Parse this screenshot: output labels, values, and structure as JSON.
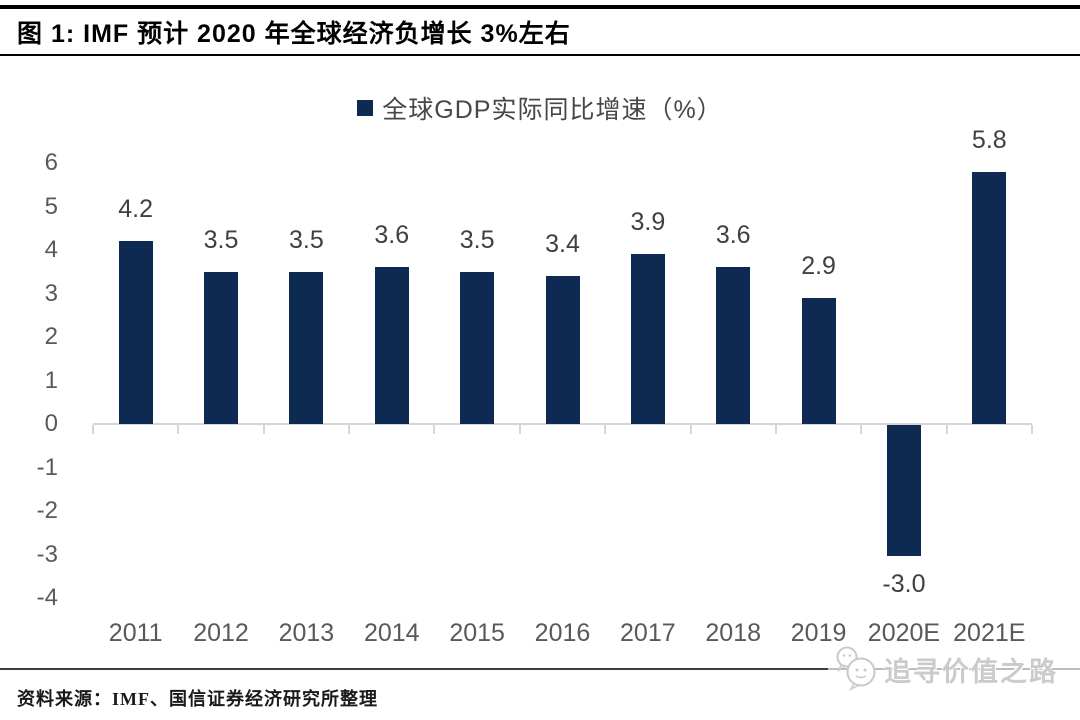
{
  "title": "图 1: IMF 预计 2020 年全球经济负增长 3%左右",
  "legend": {
    "label": "全球GDP实际同比增速（%）"
  },
  "source_note": "资料来源：IMF、国信证券经济研究所整理",
  "watermark": {
    "text": "追寻价值之路",
    "icon": "wechat-bubbles-icon"
  },
  "colors": {
    "bar": "#0e2a52",
    "axis_label": "#595959",
    "data_label": "#404040",
    "baseline": "#d6d6d6",
    "title": "#000000"
  },
  "chart_data": {
    "type": "bar",
    "title": "图 1: IMF 预计 2020 年全球经济负增长 3%左右",
    "legend_entries": [
      "全球GDP实际同比增速（%）"
    ],
    "legend_position": "top-center",
    "categories": [
      "2011",
      "2012",
      "2013",
      "2014",
      "2015",
      "2016",
      "2017",
      "2018",
      "2019",
      "2020E",
      "2021E"
    ],
    "values": [
      4.2,
      3.5,
      3.5,
      3.6,
      3.5,
      3.4,
      3.9,
      3.6,
      2.9,
      -3.0,
      5.8
    ],
    "xlabel": "",
    "ylabel": "",
    "ylim": [
      -4,
      6
    ],
    "yticks": [
      6,
      5,
      4,
      3,
      2,
      1,
      0,
      -1,
      -2,
      -3,
      -4
    ],
    "grid": false,
    "bar_color": "#0e2a52",
    "value_label_decimals": 1
  }
}
